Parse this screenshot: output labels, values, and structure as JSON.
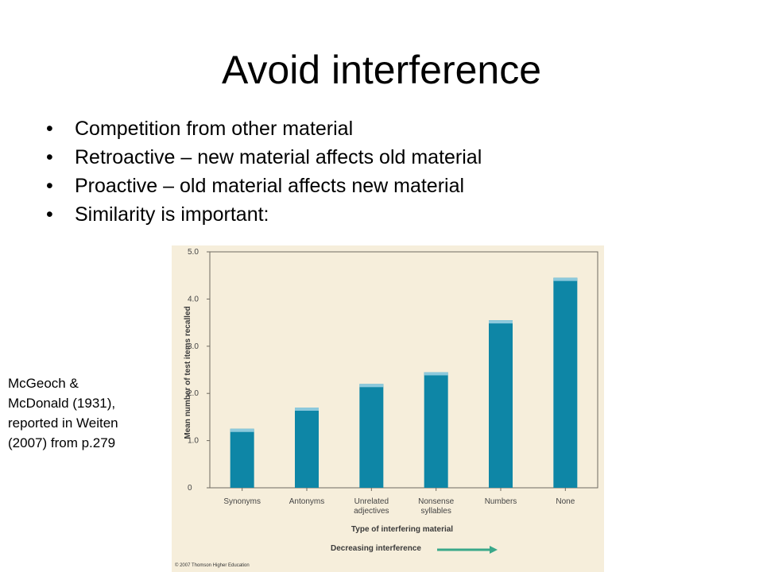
{
  "slide": {
    "title": "Avoid interference",
    "bullets": [
      "Competition from other material",
      "Retroactive – new material affects old material",
      "Proactive – old material affects new material",
      "Similarity is important:"
    ],
    "bullet_glyph": "•"
  },
  "citation": {
    "lines": [
      "McGeoch &",
      "McDonald (1931),",
      "reported in Weiten",
      "(2007) from p.279"
    ]
  },
  "figure": {
    "credit": "© 2007 Thomson Higher Education",
    "arrow_label": "Decreasing interference",
    "arrow_color": "#3aa88a"
  },
  "chart_data": {
    "type": "bar",
    "categories": [
      "Synonyms",
      "Antonyms",
      "Unrelated adjectives",
      "Nonsense syllables",
      "Numbers",
      "None"
    ],
    "category_lines": [
      [
        "Synonyms"
      ],
      [
        "Antonyms"
      ],
      [
        "Unrelated",
        "adjectives"
      ],
      [
        "Nonsense",
        "syllables"
      ],
      [
        "Numbers"
      ],
      [
        "None"
      ]
    ],
    "values": [
      1.25,
      1.7,
      2.2,
      2.45,
      3.55,
      4.45
    ],
    "xlabel": "Type of interfering material",
    "ylabel": "Mean number of test items recalled",
    "ylim": [
      0,
      5.0
    ],
    "yticks": [
      "0",
      "1.0",
      "2.0",
      "3.0",
      "4.0",
      "5.0"
    ],
    "grid": false,
    "bar_color": "#0e86a6",
    "bar_top_color": "#8cc9dc",
    "background": "#f6eedb"
  }
}
